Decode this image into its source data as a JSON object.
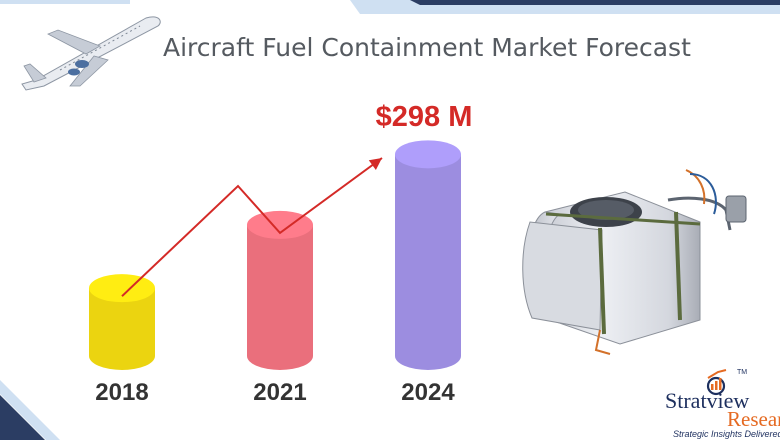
{
  "chart_data": {
    "type": "bar",
    "title": "Aircraft Fuel Containment Market Forecast",
    "categories": [
      "2018",
      "2021",
      "2024"
    ],
    "values": [
      74,
      143,
      220
    ],
    "value_label": "$298 M",
    "series_colors": [
      "#ebd410",
      "#ea6f7c",
      "#9c8de0"
    ],
    "trend_arrow": true,
    "ylim": [
      0,
      240
    ],
    "legend": "none",
    "grid": false
  },
  "brand": {
    "name_part1": "Stratview",
    "name_part2": "Research",
    "tagline": "Strategic Insights Delivered",
    "trademark": "TM"
  },
  "icons": [
    "airplane-illustration",
    "fuel-tank-illustration",
    "brand-logo-icon"
  ],
  "colors": {
    "band_top": "#2b3d63",
    "band_light": "#cfe0f2",
    "arrow": "#d42a27",
    "title_text": "#555a60"
  }
}
